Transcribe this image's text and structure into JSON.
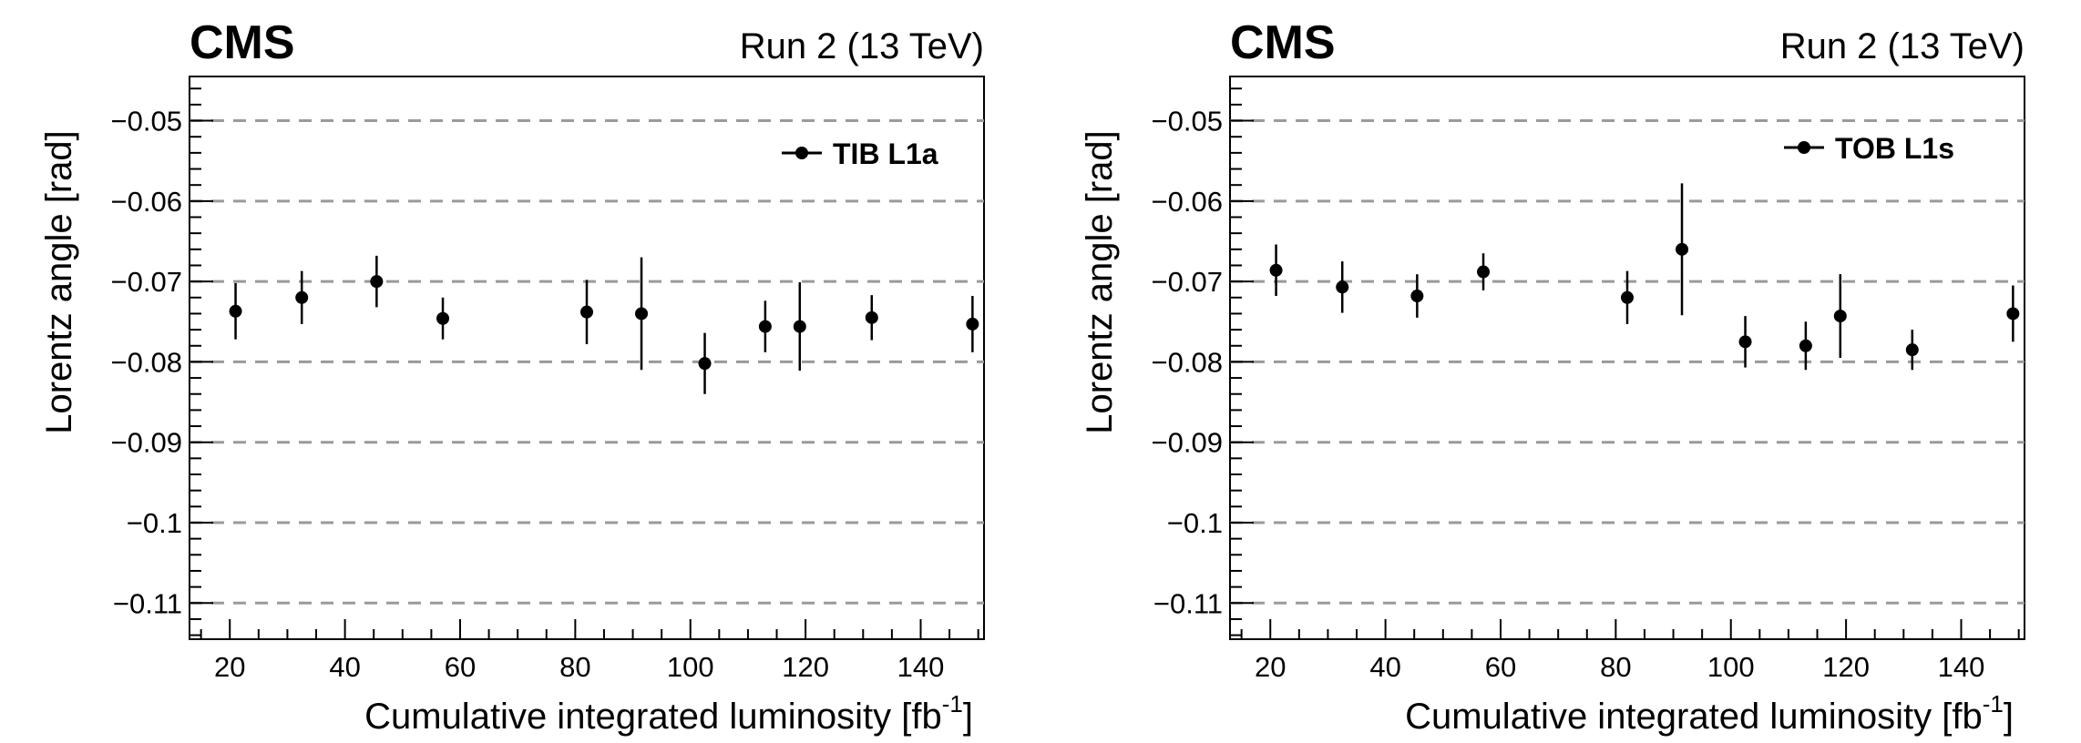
{
  "chart_data": [
    {
      "type": "scatter",
      "experiment": "CMS",
      "run_label": "Run 2 (13 TeV)",
      "xlabel": "Cumulative integrated luminosity [fb",
      "xlabel_unit_exp": "-1",
      "xlabel_close": "]",
      "ylabel": "Lorentz angle [rad]",
      "xlim": [
        13,
        151
      ],
      "ylim": [
        -0.1145,
        -0.0445
      ],
      "x_ticks": [
        20,
        40,
        60,
        80,
        100,
        120,
        140
      ],
      "x_tick_labels": [
        "20",
        "40",
        "60",
        "80",
        "100",
        "120",
        "140"
      ],
      "y_ticks": [
        -0.05,
        -0.06,
        -0.07,
        -0.08,
        -0.09,
        -0.1,
        -0.11
      ],
      "y_tick_labels": [
        "−0.05",
        "−0.06",
        "−0.07",
        "−0.08",
        "−0.09",
        "−0.1",
        "−0.11"
      ],
      "grid": "horizontal dashed",
      "legend_position": "top-right",
      "series": [
        {
          "name": "TIB L1a",
          "points": [
            {
              "x": 21,
              "y": -0.0737,
              "err": 0.0035
            },
            {
              "x": 32.5,
              "y": -0.072,
              "err": 0.0033
            },
            {
              "x": 45.5,
              "y": -0.07,
              "err": 0.0032
            },
            {
              "x": 57,
              "y": -0.0746,
              "err": 0.0026
            },
            {
              "x": 82,
              "y": -0.0738,
              "err": 0.004
            },
            {
              "x": 91.5,
              "y": -0.074,
              "err": 0.007
            },
            {
              "x": 102.5,
              "y": -0.0802,
              "err": 0.0038
            },
            {
              "x": 113,
              "y": -0.0756,
              "err": 0.0032
            },
            {
              "x": 119,
              "y": -0.0756,
              "err": 0.0055
            },
            {
              "x": 131.5,
              "y": -0.0745,
              "err": 0.0028
            },
            {
              "x": 149,
              "y": -0.0753,
              "err": 0.0035
            }
          ]
        }
      ]
    },
    {
      "type": "scatter",
      "experiment": "CMS",
      "run_label": "Run 2 (13 TeV)",
      "xlabel": "Cumulative integrated luminosity [fb",
      "xlabel_unit_exp": "-1",
      "xlabel_close": "]",
      "ylabel": "Lorentz angle [rad]",
      "xlim": [
        13,
        151
      ],
      "ylim": [
        -0.1145,
        -0.0445
      ],
      "x_ticks": [
        20,
        40,
        60,
        80,
        100,
        120,
        140
      ],
      "x_tick_labels": [
        "20",
        "40",
        "60",
        "80",
        "100",
        "120",
        "140"
      ],
      "y_ticks": [
        -0.05,
        -0.06,
        -0.07,
        -0.08,
        -0.09,
        -0.1,
        -0.11
      ],
      "y_tick_labels": [
        "−0.05",
        "−0.06",
        "−0.07",
        "−0.08",
        "−0.09",
        "−0.1",
        "−0.11"
      ],
      "grid": "horizontal dashed",
      "legend_position": "top-right",
      "series": [
        {
          "name": "TOB L1s",
          "points": [
            {
              "x": 21,
              "y": -0.0686,
              "err": 0.0032
            },
            {
              "x": 32.5,
              "y": -0.0707,
              "err": 0.0032
            },
            {
              "x": 45.5,
              "y": -0.0718,
              "err": 0.0027
            },
            {
              "x": 57,
              "y": -0.0688,
              "err": 0.0023
            },
            {
              "x": 82,
              "y": -0.072,
              "err": 0.0033
            },
            {
              "x": 91.5,
              "y": -0.066,
              "err": 0.0082
            },
            {
              "x": 102.5,
              "y": -0.0775,
              "err": 0.0032
            },
            {
              "x": 113,
              "y": -0.078,
              "err": 0.003
            },
            {
              "x": 119,
              "y": -0.0743,
              "err": 0.0052
            },
            {
              "x": 131.5,
              "y": -0.0785,
              "err": 0.0025
            },
            {
              "x": 149,
              "y": -0.074,
              "err": 0.0035
            }
          ]
        }
      ]
    }
  ]
}
